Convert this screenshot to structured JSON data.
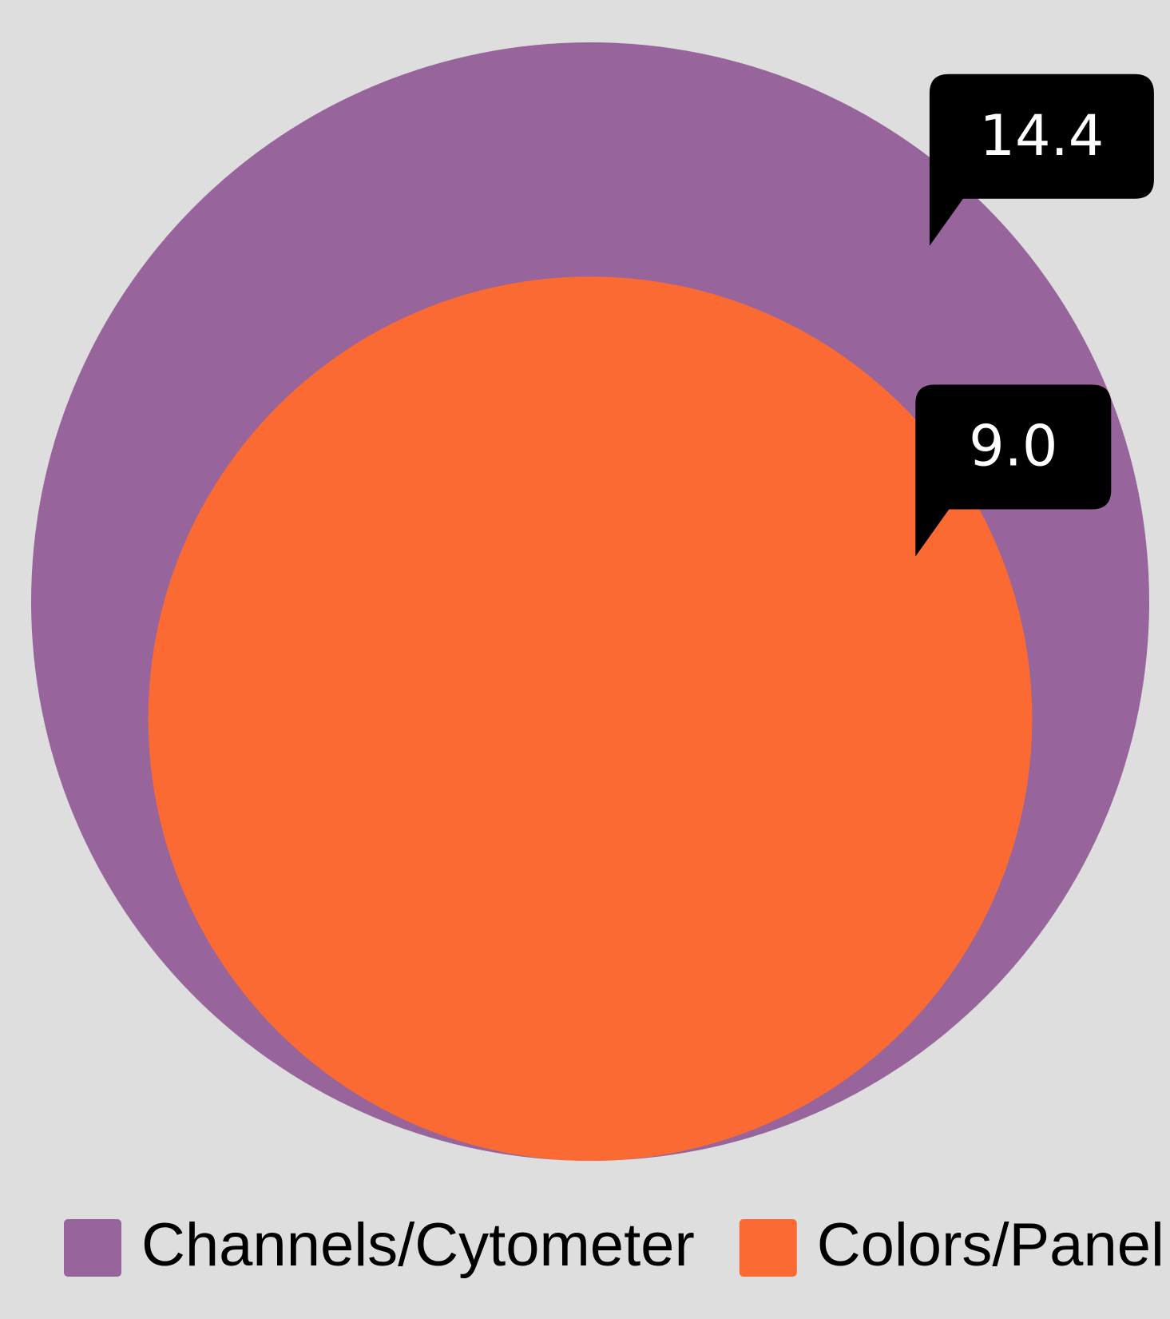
{
  "chart_data": {
    "type": "nested_circles",
    "series": [
      {
        "name": "Channels/Cytometer",
        "color": "#97649b",
        "values": [
          14.4
        ],
        "value_labels": [
          "14.4"
        ]
      },
      {
        "name": "Colors/Panel",
        "color": "#fb6a32",
        "values": [
          9.0
        ],
        "value_labels": [
          "9.0"
        ]
      }
    ]
  }
}
